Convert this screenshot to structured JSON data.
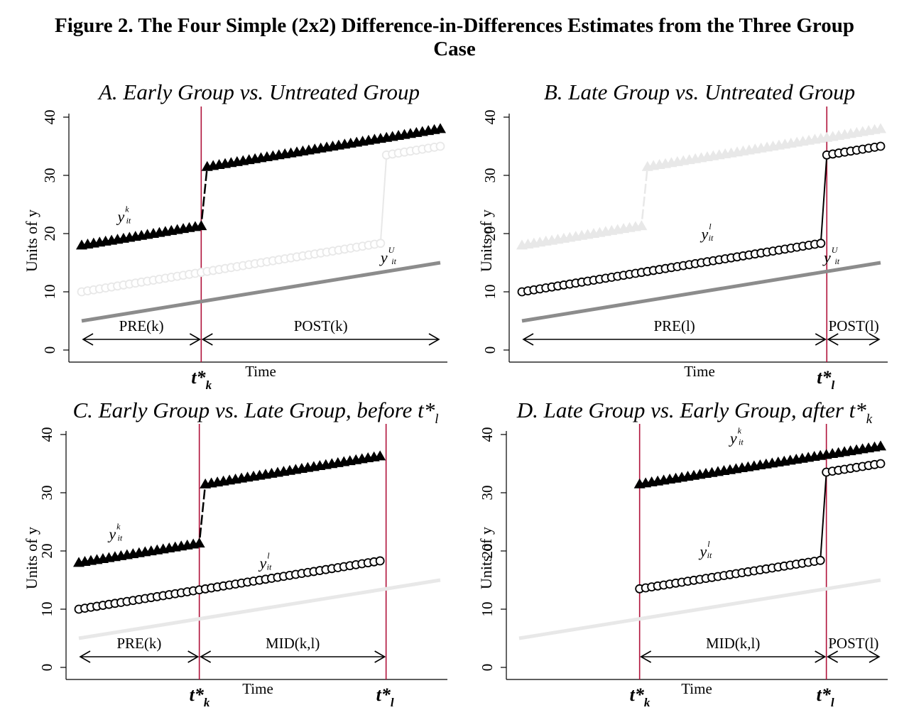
{
  "figure": {
    "title_line1": "Figure 2. The Four Simple (2x2) Difference-in-Differences Estimates from the Three Group",
    "title_line2": "Case"
  },
  "colors": {
    "early": "#000000",
    "late": "#000000",
    "untreated": "#8c8c8c",
    "faded": "#e8e8e8",
    "vline": "#b0123a",
    "axis": "#000000"
  },
  "chart_data": [
    {
      "type": "line",
      "title": "A. Early Group vs. Untreated Group",
      "xlabel": "Time",
      "ylabel": "Units of y",
      "ylim": [
        0,
        40
      ],
      "yticks": [
        0,
        10,
        20,
        30,
        40
      ],
      "xlim": [
        0,
        60
      ],
      "grid": false,
      "treatment_lines": [
        {
          "x": 20,
          "label": "t*",
          "sub": "k"
        }
      ],
      "intervals": [
        {
          "label": "PRE(k)",
          "from": 0,
          "to": 20
        },
        {
          "label": "POST(k)",
          "from": 20,
          "to": 60
        }
      ],
      "series": [
        {
          "key": "untreated",
          "style": "line",
          "color": "untreated",
          "x_start": 0,
          "x_end": 60,
          "y_start": 5,
          "y_end": 15
        },
        {
          "key": "late",
          "style": "circle",
          "color": "faded",
          "x_start": 0,
          "x_end": 60,
          "y_start": 10,
          "y_end": 35,
          "break_after": 50,
          "jump": 15
        },
        {
          "key": "early",
          "style": "triangle",
          "color": "early",
          "x_start": 0,
          "x_end": 60,
          "y_start": 18,
          "y_end": 38,
          "break_after": 20,
          "jump": 10
        }
      ],
      "annotations": [
        {
          "base": "y",
          "sup": "k",
          "sub": "it",
          "x": 6,
          "y": 22
        },
        {
          "base": "y",
          "sup": "U",
          "sub": "it",
          "x": 50,
          "y": 15
        }
      ]
    },
    {
      "type": "line",
      "title": "B. Late Group vs. Untreated Group",
      "xlabel": "Time",
      "ylabel": "Units of y",
      "ylim": [
        0,
        40
      ],
      "yticks": [
        0,
        10,
        20,
        30,
        40
      ],
      "xlim": [
        0,
        60
      ],
      "grid": false,
      "treatment_lines": [
        {
          "x": 51,
          "label": "t*",
          "sub": "l"
        }
      ],
      "intervals": [
        {
          "label": "PRE(l)",
          "from": 0,
          "to": 51
        },
        {
          "label": "POST(l)",
          "from": 51,
          "to": 60
        }
      ],
      "series": [
        {
          "key": "early",
          "style": "triangle",
          "color": "faded",
          "x_start": 0,
          "x_end": 60,
          "y_start": 18,
          "y_end": 38,
          "break_after": 20,
          "jump": 10
        },
        {
          "key": "untreated",
          "style": "line",
          "color": "untreated",
          "x_start": 0,
          "x_end": 60,
          "y_start": 5,
          "y_end": 15
        },
        {
          "key": "late",
          "style": "circle",
          "color": "late",
          "x_start": 0,
          "x_end": 60,
          "y_start": 10,
          "y_end": 35,
          "break_after": 50,
          "jump": 15
        }
      ],
      "annotations": [
        {
          "base": "y",
          "sup": "l",
          "sub": "it",
          "x": 30,
          "y": 19
        },
        {
          "base": "y",
          "sup": "U",
          "sub": "it",
          "x": 50.5,
          "y": 15
        }
      ]
    },
    {
      "type": "line",
      "title": "C. Early Group vs. Late Group, before t*",
      "title_sub": "l",
      "xlabel": "Time",
      "ylabel": "Units of y",
      "ylim": [
        0,
        40
      ],
      "yticks": [
        0,
        10,
        20,
        30,
        40
      ],
      "xlim": [
        0,
        60
      ],
      "grid": false,
      "treatment_lines": [
        {
          "x": 20,
          "label": "t*",
          "sub": "k"
        },
        {
          "x": 51,
          "label": "t*",
          "sub": "l"
        }
      ],
      "intervals": [
        {
          "label": "PRE(k)",
          "from": 0,
          "to": 20
        },
        {
          "label": "MID(k,l)",
          "from": 20,
          "to": 51
        }
      ],
      "series": [
        {
          "key": "untreated",
          "style": "line",
          "color": "faded",
          "x_start": 0,
          "x_end": 60,
          "y_start": 5,
          "y_end": 15
        },
        {
          "key": "late",
          "style": "circle",
          "color": "late",
          "x_start": 0,
          "x_end": 50,
          "y_start": 10,
          "y_end": 18.3
        },
        {
          "key": "early",
          "style": "triangle",
          "color": "early",
          "x_start": 0,
          "x_end": 50,
          "y_start": 18,
          "y_end": 36.3,
          "break_after": 20,
          "jump": 10
        }
      ],
      "annotations": [
        {
          "base": "y",
          "sup": "k",
          "sub": "it",
          "x": 5,
          "y": 22
        },
        {
          "base": "y",
          "sup": "l",
          "sub": "it",
          "x": 30,
          "y": 17
        }
      ]
    },
    {
      "type": "line",
      "title": "D. Late Group vs. Early Group, after t*",
      "title_sub": "k",
      "xlabel": "Time",
      "ylabel": "Units of y",
      "ylim": [
        0,
        40
      ],
      "yticks": [
        0,
        10,
        20,
        30,
        40
      ],
      "xlim": [
        0,
        60
      ],
      "grid": false,
      "treatment_lines": [
        {
          "x": 20,
          "label": "t*",
          "sub": "k"
        },
        {
          "x": 51,
          "label": "t*",
          "sub": "l"
        }
      ],
      "intervals": [
        {
          "label": "MID(k,l)",
          "from": 20,
          "to": 51
        },
        {
          "label": "POST(l)",
          "from": 51,
          "to": 60
        }
      ],
      "series": [
        {
          "key": "untreated",
          "style": "line",
          "color": "faded",
          "x_start": 0,
          "x_end": 60,
          "y_start": 5,
          "y_end": 15
        },
        {
          "key": "late",
          "style": "circle",
          "color": "late",
          "x_start": 20,
          "x_end": 60,
          "y_start": 13.5,
          "y_end": 35,
          "break_after": 50,
          "jump": 15
        },
        {
          "key": "early",
          "style": "triangle",
          "color": "early",
          "x_start": 20,
          "x_end": 60,
          "y_start": 31.5,
          "y_end": 38
        }
      ],
      "annotations": [
        {
          "base": "y",
          "sup": "k",
          "sub": "it",
          "x": 35,
          "y": 38.5
        },
        {
          "base": "y",
          "sup": "l",
          "sub": "it",
          "x": 30,
          "y": 19
        }
      ]
    }
  ]
}
